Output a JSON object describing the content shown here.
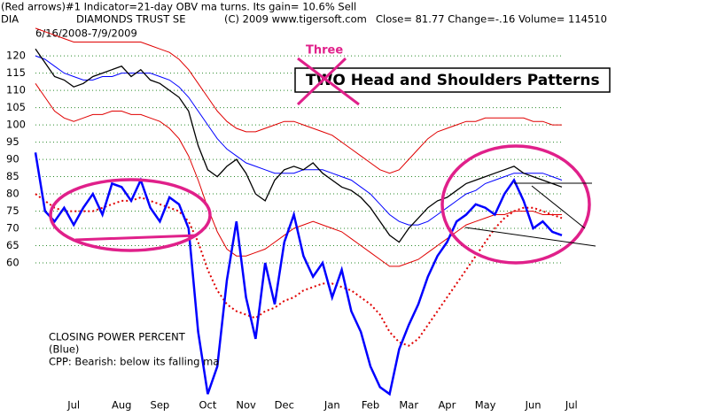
{
  "chart_data": {
    "type": "line",
    "header": "(Red arrows)#1 Indicator=21-day OBV ma turns. Its gain= 10.6% Sell",
    "ticker": "DIA",
    "title": "DIAMONDS TRUST SE",
    "copyright": "(C) 2009 www.tigersoft.com",
    "quote": "Close=  81.77   Change=-.16 Volume= 114510",
    "subtitle": "6/16/2008-7/9/2009",
    "annotations": [
      "Three",
      "TWO Head and Shoulders Patterns",
      "CLOSING POWER PERCENT",
      "(Blue)",
      "CPP: Bearish: below its falling ma"
    ],
    "categories": [
      null,
      null,
      null,
      null,
      "Jul",
      null,
      null,
      null,
      null,
      "Aug",
      null,
      null,
      null,
      "Sep",
      null,
      null,
      null,
      null,
      "Oct",
      null,
      null,
      null,
      "Nov",
      null,
      null,
      null,
      "Dec",
      null,
      null,
      null,
      null,
      "Jan",
      null,
      null,
      null,
      "Feb",
      null,
      null,
      null,
      "Mar",
      null,
      null,
      null,
      "Apr",
      null,
      null,
      null,
      "May",
      null,
      null,
      null,
      null,
      "Jun",
      null,
      null,
      null,
      "Jul"
    ],
    "ylim": [
      16,
      129
    ],
    "yticks": [
      60,
      65,
      70,
      75,
      80,
      85,
      90,
      95,
      100,
      105,
      110,
      115,
      120
    ],
    "grid": true,
    "series": [
      {
        "color": "#e00000",
        "line_width": 1,
        "values": [
          128,
          127,
          126,
          125,
          124,
          124,
          124,
          124,
          124,
          124,
          124,
          124,
          123,
          122,
          121,
          119,
          116,
          112,
          108,
          104,
          101,
          99,
          98,
          98,
          99,
          100,
          101,
          101,
          100,
          99,
          98,
          97,
          95,
          93,
          91,
          89,
          87,
          86,
          87,
          90,
          93,
          96,
          98,
          99,
          100,
          101,
          101,
          102,
          102,
          102,
          102,
          102,
          101,
          101,
          100,
          100,
          null
        ]
      },
      {
        "color": "#e00000",
        "line_width": 1,
        "values": [
          112,
          108,
          104,
          102,
          101,
          102,
          103,
          103,
          104,
          104,
          103,
          103,
          102,
          101,
          99,
          96,
          91,
          84,
          76,
          69,
          64,
          62,
          62,
          63,
          64,
          66,
          68,
          70,
          71,
          72,
          71,
          70,
          69,
          67,
          65,
          63,
          61,
          59,
          59,
          60,
          61,
          63,
          65,
          67,
          69,
          71,
          72,
          73,
          74,
          74,
          75,
          75,
          75,
          74,
          74,
          74,
          null
        ]
      },
      {
        "color": "#0000ff",
        "line_width": 1,
        "values": [
          120,
          119,
          117,
          115,
          114,
          113,
          113,
          114,
          114,
          115,
          115,
          115,
          115,
          114,
          113,
          111,
          108,
          104,
          100,
          96,
          93,
          91,
          89,
          88,
          87,
          86,
          86,
          86,
          87,
          87,
          87,
          86,
          85,
          84,
          82,
          80,
          77,
          74,
          72,
          71,
          71,
          72,
          74,
          76,
          78,
          80,
          81,
          83,
          84,
          85,
          86,
          86,
          86,
          86,
          85,
          84,
          null
        ]
      },
      {
        "color": "#000000",
        "line_width": 1.3,
        "values": [
          122,
          118,
          114,
          113,
          111,
          112,
          114,
          115,
          116,
          117,
          114,
          116,
          113,
          112,
          110,
          108,
          104,
          94,
          87,
          85,
          88,
          90,
          86,
          80,
          78,
          84,
          87,
          88,
          87,
          89,
          86,
          84,
          82,
          81,
          79,
          76,
          72,
          68,
          66,
          70,
          73,
          76,
          78,
          79,
          81,
          83,
          84,
          85,
          86,
          87,
          88,
          86,
          85,
          84,
          83,
          82,
          null
        ]
      },
      {
        "color": "#e00000",
        "line_width": 2,
        "dotted": true,
        "values": [
          80,
          78,
          76,
          75,
          75,
          75,
          75,
          76,
          77,
          78,
          78,
          79,
          78,
          77,
          76,
          75,
          72,
          66,
          58,
          52,
          48,
          46,
          45,
          44,
          46,
          47,
          49,
          50,
          52,
          53,
          54,
          54,
          53,
          52,
          50,
          48,
          45,
          40,
          37,
          36,
          38,
          42,
          46,
          50,
          54,
          58,
          62,
          66,
          70,
          73,
          75,
          76,
          76,
          75,
          74,
          73,
          null
        ]
      },
      {
        "color": "#0000ff",
        "line_width": 2.5,
        "values": [
          92,
          75,
          72,
          76,
          71,
          76,
          80,
          74,
          83,
          82,
          78,
          84,
          76,
          72,
          79,
          77,
          70,
          40,
          22,
          30,
          55,
          72,
          50,
          38,
          60,
          48,
          66,
          74,
          62,
          56,
          60,
          50,
          58,
          46,
          40,
          30,
          24,
          22,
          35,
          42,
          48,
          56,
          62,
          66,
          72,
          74,
          77,
          76,
          74,
          80,
          84,
          78,
          70,
          72,
          69,
          68,
          null
        ]
      }
    ]
  }
}
